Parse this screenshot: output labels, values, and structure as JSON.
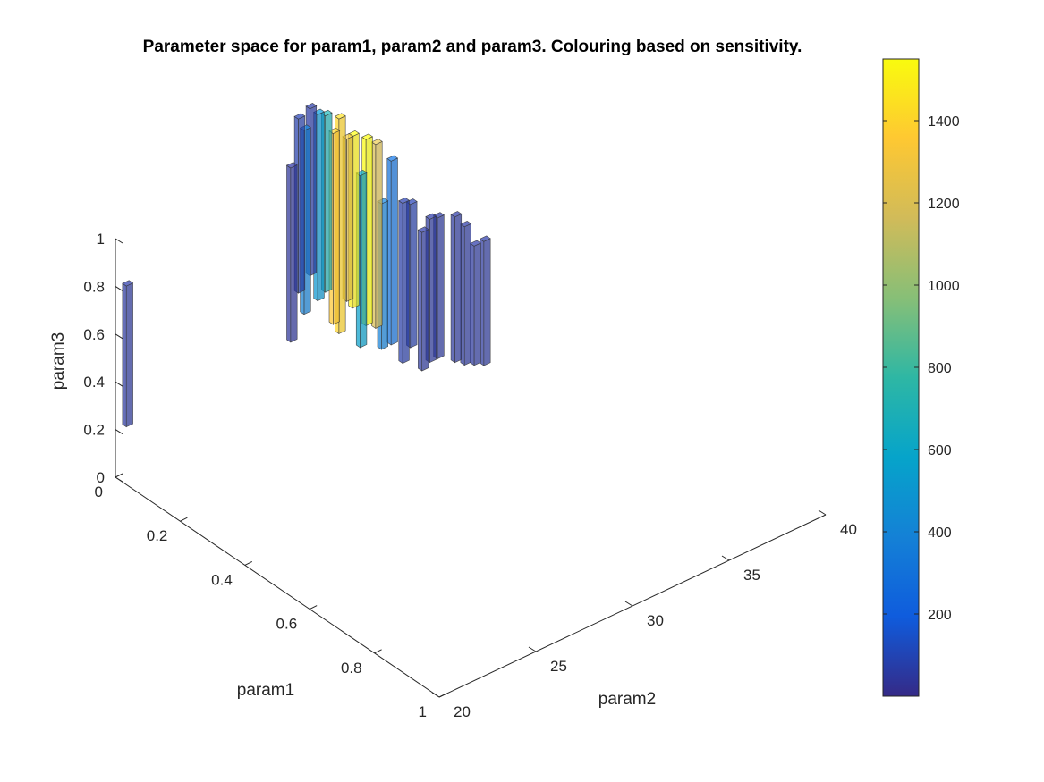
{
  "chart_data": {
    "type": "bar3",
    "title": "Parameter space for param1, param2 and param3. Colouring based on sensitivity.",
    "axes": {
      "x": {
        "label": "param1",
        "range": [
          0,
          1
        ],
        "ticks": [
          0,
          0.2,
          0.4,
          0.6,
          0.8,
          1
        ],
        "tick_labels": [
          "0",
          "0.2",
          "0.4",
          "0.6",
          "0.8",
          "1"
        ]
      },
      "y": {
        "label": "param2",
        "range": [
          20,
          40
        ],
        "ticks": [
          20,
          25,
          30,
          35,
          40
        ],
        "tick_labels": [
          "20",
          "25",
          "30",
          "35",
          "40"
        ]
      },
      "z": {
        "label": "param3",
        "range": [
          0,
          1
        ],
        "ticks": [
          0,
          0.2,
          0.4,
          0.6,
          0.8,
          1
        ],
        "tick_labels": [
          "0",
          "0.2",
          "0.4",
          "0.6",
          "0.8",
          "1"
        ]
      }
    },
    "grid": false,
    "colorbar": {
      "placement": "right",
      "range": [
        0,
        1550
      ],
      "ticks": [
        200,
        400,
        600,
        800,
        1000,
        1200,
        1400
      ],
      "tick_labels": [
        "200",
        "400",
        "600",
        "800",
        "1000",
        "1200",
        "1400"
      ],
      "colormap": "parula",
      "colors": [
        "#352a87",
        "#0f5cdd",
        "#1481d6",
        "#06a4ca",
        "#2eb7a4",
        "#87bf77",
        "#d1bb59",
        "#fec832",
        "#f9fb0e"
      ]
    },
    "bars": [
      {
        "param1": 0.02,
        "param2": 28.8,
        "z_low": 0.26,
        "z_high": 0.99,
        "sensitivity": 40
      },
      {
        "param1": 0.02,
        "param2": 29.5,
        "z_low": 0.35,
        "z_high": 1.12,
        "sensitivity": 380
      },
      {
        "param1": 0.02,
        "param2": 30.2,
        "z_low": 0.38,
        "z_high": 1.16,
        "sensitivity": 500
      },
      {
        "param1": 0.02,
        "param2": 31.0,
        "z_low": 0.25,
        "z_high": 1.05,
        "sensitivity": 1350
      },
      {
        "param1": 0.02,
        "param2": 31.7,
        "z_low": 0.32,
        "z_high": 1.0,
        "sensitivity": 1250
      },
      {
        "param1": 0.02,
        "param2": 32.4,
        "z_low": 0.1,
        "z_high": 0.82,
        "sensitivity": 560
      },
      {
        "param1": 0.02,
        "param2": 33.5,
        "z_low": 0.05,
        "z_high": 0.66,
        "sensitivity": 380
      },
      {
        "param1": 0.02,
        "param2": 34.6,
        "z_low": -0.05,
        "z_high": 0.62,
        "sensitivity": 70
      },
      {
        "param1": 0.02,
        "param2": 35.6,
        "z_low": -0.12,
        "z_high": 0.46,
        "sensitivity": 50
      },
      {
        "param1": 0.02,
        "param2": 36.4,
        "z_low": -0.1,
        "z_high": 0.49,
        "sensitivity": 50
      },
      {
        "param1": 0.02,
        "param2": 37.3,
        "z_low": -0.15,
        "z_high": 0.46,
        "sensitivity": 50
      },
      {
        "param1": 0.02,
        "param2": 38.3,
        "z_low": -0.2,
        "z_high": 0.3,
        "sensitivity": 50
      },
      {
        "param1": 0.02,
        "param2": 29.2,
        "z_low": 0.45,
        "z_high": 1.18,
        "sensitivity": 80
      },
      {
        "param1": 0.02,
        "param2": 29.8,
        "z_low": 0.5,
        "z_high": 1.2,
        "sensitivity": 60
      },
      {
        "param1": 0.02,
        "param2": 30.6,
        "z_low": 0.4,
        "z_high": 1.14,
        "sensitivity": 700
      },
      {
        "param1": 0.02,
        "param2": 31.3,
        "z_low": 0.2,
        "z_high": 1.1,
        "sensitivity": 1400
      },
      {
        "param1": 0.02,
        "param2": 32.0,
        "z_low": 0.28,
        "z_high": 1.0,
        "sensitivity": 1500
      },
      {
        "param1": 0.02,
        "param2": 32.7,
        "z_low": 0.18,
        "z_high": 0.96,
        "sensitivity": 1550
      },
      {
        "param1": 0.02,
        "param2": 33.2,
        "z_low": 0.15,
        "z_high": 0.92,
        "sensitivity": 1200
      },
      {
        "param1": 0.02,
        "param2": 34.0,
        "z_low": 0.05,
        "z_high": 0.82,
        "sensitivity": 300
      },
      {
        "param1": 0.02,
        "param2": 35.0,
        "z_low": 0.0,
        "z_high": 0.6,
        "sensitivity": 80
      },
      {
        "param1": 0.02,
        "param2": 36.0,
        "z_low": -0.1,
        "z_high": 0.5,
        "sensitivity": 50
      },
      {
        "param1": 0.02,
        "param2": 37.8,
        "z_low": -0.18,
        "z_high": 0.4,
        "sensitivity": 50
      },
      {
        "param1": 0.02,
        "param2": 38.8,
        "z_low": -0.22,
        "z_high": 0.3,
        "sensitivity": 50
      },
      {
        "param1": 0.02,
        "param2": 20.3,
        "z_low": 0.23,
        "z_high": 0.82,
        "sensitivity": 50
      }
    ]
  }
}
